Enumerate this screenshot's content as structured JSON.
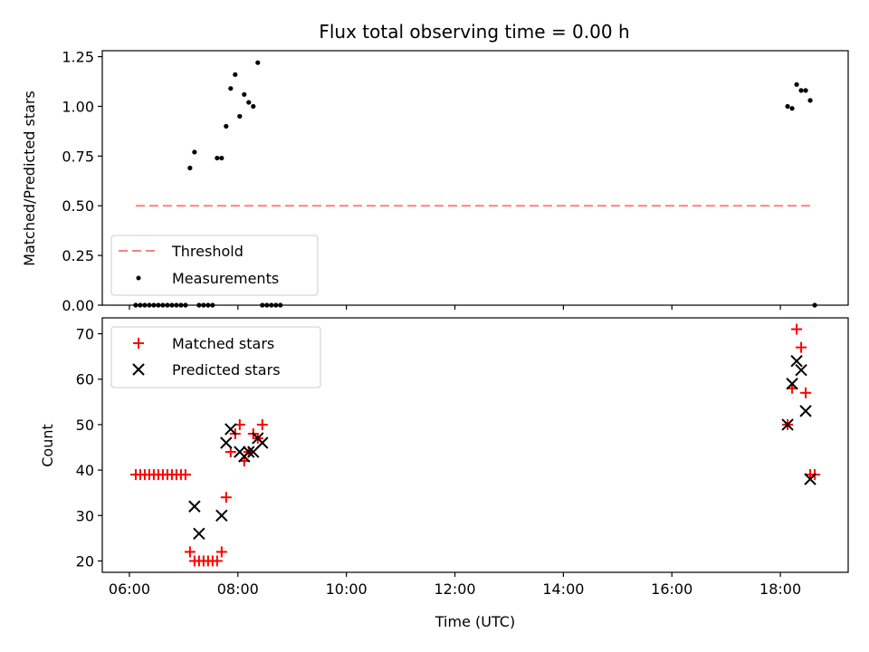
{
  "title": "Flux total observing time = 0.00 h",
  "colors": {
    "threshold": "#ff8080",
    "measurements": "#000000",
    "matched": "#ff0000",
    "predicted": "#000000"
  },
  "chart_data": [
    {
      "type": "scatter",
      "panel": "top",
      "title": "Flux total observing time = 0.00 h",
      "xlabel": "",
      "ylabel": "Matched/Predicted stars",
      "xlim": [
        "05:30",
        "19:15"
      ],
      "ylim": [
        0,
        1.28
      ],
      "x_ticks": [
        "06:00",
        "08:00",
        "10:00",
        "12:00",
        "14:00",
        "16:00",
        "18:00"
      ],
      "y_ticks": [
        0.0,
        0.25,
        0.5,
        0.75,
        1.0,
        1.25
      ],
      "y_tick_labels": [
        "0.00",
        "0.25",
        "0.50",
        "0.75",
        "1.00",
        "1.25"
      ],
      "legend_position": "lower-left",
      "series": [
        {
          "name": "Threshold",
          "kind": "line",
          "style": "dashed",
          "color": "#ff8080",
          "x": [
            "06:07",
            "18:38"
          ],
          "y": [
            0.5,
            0.5
          ]
        },
        {
          "name": "Measurements",
          "kind": "scatter",
          "color": "#000000",
          "x": [
            "06:07",
            "06:12",
            "06:17",
            "06:22",
            "06:27",
            "06:32",
            "06:37",
            "06:42",
            "06:47",
            "06:52",
            "06:57",
            "07:02",
            "07:07",
            "07:12",
            "07:17",
            "07:22",
            "07:27",
            "07:32",
            "07:37",
            "07:42",
            "07:47",
            "07:52",
            "07:57",
            "08:02",
            "08:07",
            "08:12",
            "08:17",
            "08:22",
            "08:27",
            "08:32",
            "08:37",
            "08:42",
            "08:47",
            "18:08",
            "18:13",
            "18:18",
            "18:23",
            "18:28",
            "18:33",
            "18:38"
          ],
          "y": [
            0,
            0,
            0,
            0,
            0,
            0,
            0,
            0,
            0,
            0,
            0,
            0,
            0.69,
            0.77,
            0,
            0,
            0,
            0,
            0.74,
            0.74,
            0.9,
            1.09,
            1.16,
            0.95,
            1.06,
            1.02,
            1.0,
            1.22,
            0,
            0,
            0,
            0,
            0,
            1.0,
            0.99,
            1.11,
            1.08,
            1.08,
            1.03,
            0
          ]
        }
      ]
    },
    {
      "type": "scatter",
      "panel": "bottom",
      "title": "",
      "xlabel": "Time (UTC)",
      "ylabel": "Count",
      "xlim": [
        "05:30",
        "19:15"
      ],
      "ylim": [
        17.5,
        73.5
      ],
      "x_ticks": [
        "06:00",
        "08:00",
        "10:00",
        "12:00",
        "14:00",
        "16:00",
        "18:00"
      ],
      "y_ticks": [
        20,
        30,
        40,
        50,
        60,
        70
      ],
      "legend_position": "upper-left",
      "series": [
        {
          "name": "Matched stars",
          "marker": "plus",
          "color": "#ff0000",
          "x": [
            "06:07",
            "06:12",
            "06:17",
            "06:22",
            "06:27",
            "06:32",
            "06:37",
            "06:42",
            "06:47",
            "06:52",
            "06:57",
            "07:02",
            "07:07",
            "07:12",
            "07:17",
            "07:22",
            "07:27",
            "07:32",
            "07:37",
            "07:42",
            "07:47",
            "07:52",
            "07:57",
            "08:02",
            "08:07",
            "08:12",
            "08:17",
            "08:22",
            "08:27",
            "18:08",
            "18:13",
            "18:18",
            "18:23",
            "18:28",
            "18:33",
            "18:38"
          ],
          "y": [
            39,
            39,
            39,
            39,
            39,
            39,
            39,
            39,
            39,
            39,
            39,
            39,
            22,
            20,
            20,
            20,
            20,
            20,
            20,
            22,
            34,
            44,
            48,
            50,
            42,
            44,
            48,
            47,
            50,
            50,
            58,
            71,
            67,
            57,
            39,
            39
          ]
        },
        {
          "name": "Predicted stars",
          "marker": "x",
          "color": "#000000",
          "x": [
            "07:12",
            "07:17",
            "07:42",
            "07:47",
            "07:52",
            "08:02",
            "08:07",
            "08:12",
            "08:17",
            "08:22",
            "08:27",
            "18:08",
            "18:13",
            "18:18",
            "18:23",
            "18:28",
            "18:33"
          ],
          "y": [
            32,
            26,
            30,
            46,
            49,
            44,
            43,
            44,
            44,
            47,
            46,
            50,
            59,
            64,
            62,
            53,
            38
          ]
        }
      ]
    }
  ]
}
